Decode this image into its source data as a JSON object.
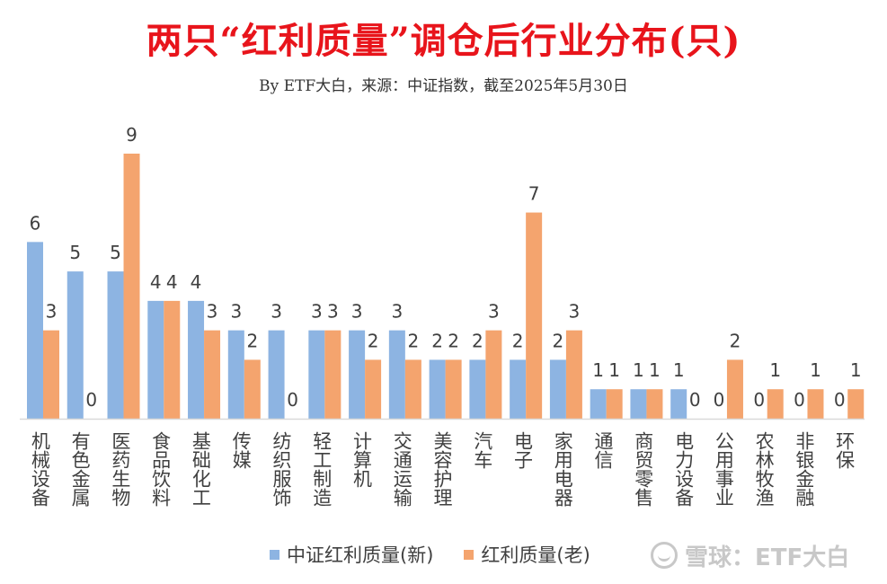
{
  "header": {
    "title": "两只“红利质量”调仓后行业分布(只)",
    "subtitle": "By ETF大白，来源：中证指数，截至2025年5月30日"
  },
  "watermark": {
    "logo_icon": "snowball-logo-icon",
    "text": "雪球：ETF大白"
  },
  "chart_data": {
    "type": "bar",
    "title": "两只“红利质量”调仓后行业分布(只)",
    "subtitle": "By ETF大白，来源：中证指数，截至2025年5月30日",
    "categories": [
      "机械设备",
      "有色金属",
      "医药生物",
      "食品饮料",
      "基础化工",
      "传媒",
      "纺织服饰",
      "轻工制造",
      "计算机",
      "交通运输",
      "美容护理",
      "汽车",
      "电子",
      "家用电器",
      "通信",
      "商贸零售",
      "电力设备",
      "公用事业",
      "农林牧渔",
      "非银金融",
      "环保"
    ],
    "series": [
      {
        "name": "中证红利质量(新)",
        "color": "#8db4e2",
        "values": [
          6,
          5,
          5,
          4,
          4,
          3,
          3,
          3,
          3,
          3,
          2,
          2,
          2,
          2,
          1,
          1,
          1,
          0,
          0,
          0,
          0
        ]
      },
      {
        "name": "红利质量(老)",
        "color": "#f4a46e",
        "values": [
          3,
          0,
          9,
          4,
          3,
          2,
          0,
          3,
          2,
          2,
          2,
          3,
          7,
          3,
          1,
          1,
          0,
          2,
          1,
          1,
          1
        ]
      }
    ],
    "ylim": [
      0,
      9
    ],
    "xlabel": "",
    "ylabel": "",
    "grid": false,
    "data_labels": true,
    "legend": "bottom"
  }
}
